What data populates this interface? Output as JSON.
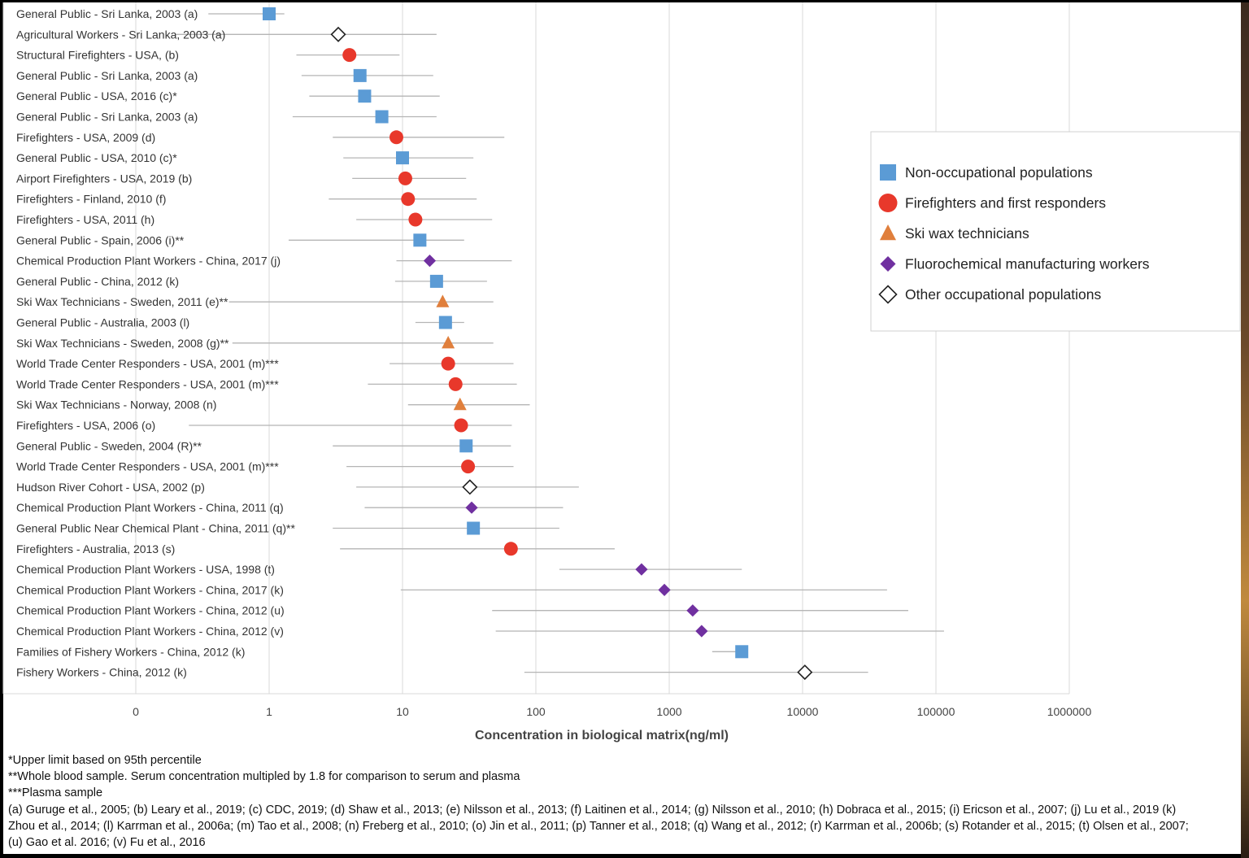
{
  "chart_data": {
    "type": "scatter",
    "orientation": "horizontal",
    "xscale": "log",
    "xlabel": "Concentration in biological matrix(ng/ml)",
    "ylabel": "",
    "title": "",
    "xlim": [
      0.01,
      1000000
    ],
    "x_ticks": [
      {
        "value": 0.1,
        "label": "0"
      },
      {
        "value": 1,
        "label": "1"
      },
      {
        "value": 10,
        "label": "10"
      },
      {
        "value": 100,
        "label": "100"
      },
      {
        "value": 1000,
        "label": "1000"
      },
      {
        "value": 10000,
        "label": "10000"
      },
      {
        "value": 100000,
        "label": "100000"
      },
      {
        "value": 1000000,
        "label": "1000000"
      }
    ],
    "grid": "vertical",
    "legend_position": "right",
    "groups": [
      {
        "key": "non",
        "name": "Non-occupational populations",
        "marker": "square",
        "color": "#5B9BD5"
      },
      {
        "key": "ff",
        "name": "Firefighters and first responders",
        "marker": "circle",
        "color": "#E8382B"
      },
      {
        "key": "ski",
        "name": "Ski wax technicians",
        "marker": "triangle",
        "color": "#E07F3C"
      },
      {
        "key": "fluoro",
        "name": "Fluorochemical manufacturing workers",
        "marker": "diamond",
        "color": "#7030A0"
      },
      {
        "key": "other",
        "name": "Other occupational populations",
        "marker": "diamond-open",
        "color": "#222222"
      }
    ],
    "rows": [
      {
        "label": "General Public - Sri Lanka, 2003 (a)",
        "group": "non",
        "value": 1.0,
        "low": 0.35,
        "high": 1.3
      },
      {
        "label": "Agricultural Workers - Sri Lanka, 2003 (a)",
        "group": "other",
        "value": 3.3,
        "low": 0.2,
        "high": 18
      },
      {
        "label": "Structural Firefighters - USA, (b)",
        "group": "ff",
        "value": 4.0,
        "low": 1.6,
        "high": 9.5
      },
      {
        "label": "General Public - Sri Lanka, 2003 (a)",
        "group": "non",
        "value": 4.8,
        "low": 1.75,
        "high": 17
      },
      {
        "label": "General Public - USA, 2016 (c)*",
        "group": "non",
        "value": 5.2,
        "low": 2.0,
        "high": 19
      },
      {
        "label": "General Public - Sri Lanka, 2003 (a)",
        "group": "non",
        "value": 7.0,
        "low": 1.5,
        "high": 18
      },
      {
        "label": "Firefighters - USA, 2009 (d)",
        "group": "ff",
        "value": 9.0,
        "low": 3.0,
        "high": 58
      },
      {
        "label": "General Public - USA, 2010 (c)*",
        "group": "non",
        "value": 10.0,
        "low": 3.6,
        "high": 34
      },
      {
        "label": "Airport Firefighters - USA, 2019 (b)",
        "group": "ff",
        "value": 10.5,
        "low": 4.2,
        "high": 30
      },
      {
        "label": "Firefighters - Finland, 2010 (f)",
        "group": "ff",
        "value": 11.0,
        "low": 2.8,
        "high": 36
      },
      {
        "label": "Firefighters - USA, 2011 (h)",
        "group": "ff",
        "value": 12.5,
        "low": 4.5,
        "high": 47
      },
      {
        "label": "General Public - Spain, 2006 (i)**",
        "group": "non",
        "value": 13.5,
        "low": 1.4,
        "high": 29
      },
      {
        "label": "Chemical Production Plant Workers - China, 2017 (j)",
        "group": "fluoro",
        "value": 16.0,
        "low": 9.0,
        "high": 66
      },
      {
        "label": "General Public - China, 2012 (k)",
        "group": "non",
        "value": 18.0,
        "low": 8.8,
        "high": 43
      },
      {
        "label": "Ski Wax Technicians - Sweden, 2011 (e)**",
        "group": "ski",
        "value": 20.0,
        "low": 0.5,
        "high": 48
      },
      {
        "label": "General Public - Australia, 2003 (l)",
        "group": "non",
        "value": 21.0,
        "low": 12.5,
        "high": 29
      },
      {
        "label": "Ski Wax Technicians - Sweden, 2008 (g)**",
        "group": "ski",
        "value": 22.0,
        "low": 0.53,
        "high": 48
      },
      {
        "label": "World Trade Center Responders - USA, 2001 (m)***",
        "group": "ff",
        "value": 22.0,
        "low": 8.0,
        "high": 68
      },
      {
        "label": "World Trade Center Responders  - USA, 2001 (m)***",
        "group": "ff",
        "value": 25.0,
        "low": 5.5,
        "high": 72
      },
      {
        "label": "Ski Wax Technicians - Norway, 2008 (n)",
        "group": "ski",
        "value": 27.0,
        "low": 11.0,
        "high": 90
      },
      {
        "label": "Firefighters - USA, 2006 (o)",
        "group": "ff",
        "value": 27.5,
        "low": 0.25,
        "high": 66
      },
      {
        "label": "General Public - Sweden, 2004 (R)**",
        "group": "non",
        "value": 30.0,
        "low": 3.0,
        "high": 65
      },
      {
        "label": "World Trade Center Responders - USA, 2001 (m)***",
        "group": "ff",
        "value": 31.0,
        "low": 3.8,
        "high": 68
      },
      {
        "label": "Hudson River Cohort - USA, 2002 (p)",
        "group": "other",
        "value": 32.0,
        "low": 4.5,
        "high": 210
      },
      {
        "label": "Chemical Production Plant Workers - China, 2011 (q)",
        "group": "fluoro",
        "value": 33.0,
        "low": 5.2,
        "high": 160
      },
      {
        "label": "General Public Near Chemical Plant - China, 2011 (q)**",
        "group": "non",
        "value": 34.0,
        "low": 3.0,
        "high": 150
      },
      {
        "label": "Firefighters - Australia, 2013 (s)",
        "group": "ff",
        "value": 65.0,
        "low": 3.4,
        "high": 390
      },
      {
        "label": "Chemical Production Plant Workers - USA, 1998 (t)",
        "group": "fluoro",
        "value": 620,
        "low": 150,
        "high": 3500
      },
      {
        "label": "Chemical Production Plant Workers - China, 2017 (k)",
        "group": "fluoro",
        "value": 920,
        "low": 9.7,
        "high": 43000
      },
      {
        "label": "Chemical Production Plant Workers - China, 2012 (u)",
        "group": "fluoro",
        "value": 1500,
        "low": 47,
        "high": 62000
      },
      {
        "label": "Chemical Production Plant Workers - China, 2012 (v)",
        "group": "fluoro",
        "value": 1750,
        "low": 50,
        "high": 115000
      },
      {
        "label": "Families of Fishery Workers - China, 2012 (k)",
        "group": "non",
        "value": 3500,
        "low": 2100,
        "high": 3900
      },
      {
        "label": "Fishery Workers - China, 2012 (k)",
        "group": "other",
        "value": 10400,
        "low": 82,
        "high": 31000
      }
    ]
  },
  "footnotes": [
    "*Upper limit based on 95th percentile",
    "**Whole blood sample. Serum concentration multipled by 1.8 for comparison to serum and plasma",
    "***Plasma sample",
    "(a) Guruge et al., 2005; (b) Leary et al., 2019; (c) CDC, 2019; (d) Shaw et al., 2013; (e) Nilsson et al., 2013; (f) Laitinen et al., 2014; (g) Nilsson et al., 2010; (h) Dobraca et al., 2015; (i) Ericson et al., 2007; (j) Lu et al., 2019 (k)",
    "Zhou et al., 2014; (l) Karrman et al., 2006a; (m) Tao et al., 2008; (n) Freberg et al., 2010; (o) Jin et al., 2011; (p) Tanner et al., 2018; (q) Wang et al., 2012; (r) Karrman et al., 2006b; (s) Rotander et al., 2015; (t) Olsen et al., 2007;",
    "(u) Gao et al. 2016; (v) Fu et al., 2016"
  ]
}
